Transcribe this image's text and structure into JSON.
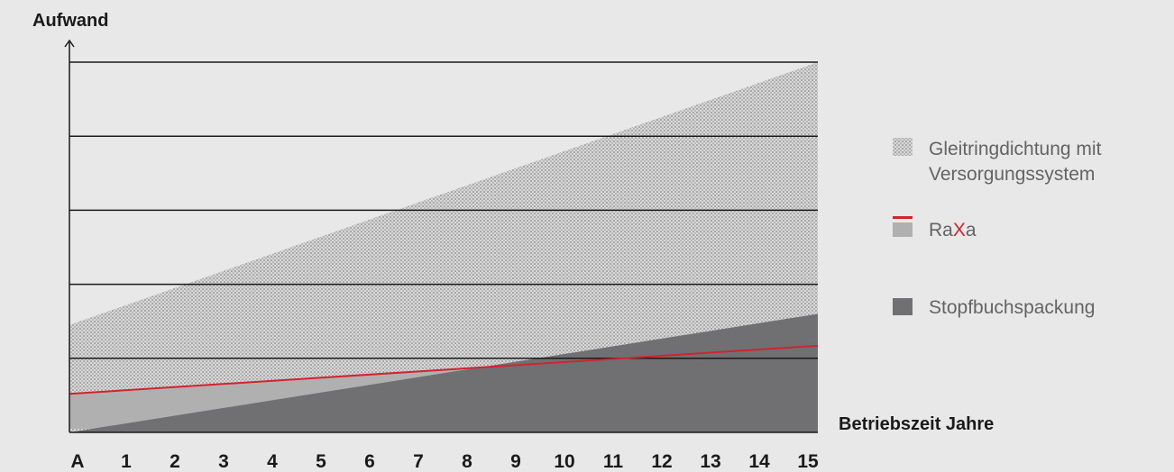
{
  "chart_data": {
    "type": "area",
    "ylabel": "Aufwand",
    "xlabel": "Betriebszeit Jahre",
    "categories": [
      "A",
      "1",
      "2",
      "3",
      "4",
      "5",
      "6",
      "7",
      "8",
      "9",
      "10",
      "11",
      "12",
      "13",
      "14",
      "15"
    ],
    "ylim": [
      0,
      5
    ],
    "grid": true,
    "legend_position": "right",
    "series": [
      {
        "name": "Gleitringdichtung mit Versorgungssystem",
        "name_lines": [
          "Gleitringdichtung mit",
          "Versorgungssystem"
        ],
        "style": "dotted-area",
        "color": "#c6c6c6",
        "values_start": 1.45,
        "values_end": 5.0
      },
      {
        "name": "RaXa",
        "name_parts": [
          {
            "text": "Ra",
            "color": "#646464"
          },
          {
            "text": "X",
            "color": "#d1242e"
          },
          {
            "text": "a",
            "color": "#646464"
          }
        ],
        "style": "area-with-line",
        "color": "#b0b0b1",
        "line_color": "#d1242e",
        "values_start": 0.52,
        "values_end": 1.17,
        "area_start": 0.05
      },
      {
        "name": "Stopfbuchspackung",
        "style": "area",
        "color": "#707073",
        "values_start": 0.0,
        "values_end": 1.6
      }
    ]
  }
}
